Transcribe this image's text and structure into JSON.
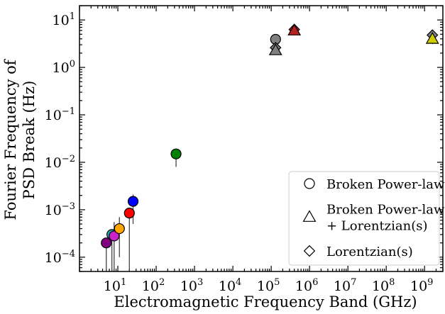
{
  "chart_data": {
    "type": "scatter",
    "xlabel": "Electromagnetic Frequency Band (GHz)",
    "ylabel_lines": [
      "Fourier Frequency of",
      "PSD Break (Hz)"
    ],
    "xscale": "log",
    "yscale": "log",
    "xlim": [
      1,
      3000000000
    ],
    "ylim": [
      5e-05,
      20
    ],
    "x_tick_labels": [
      {
        "value": 10,
        "base": "10",
        "exp": "1"
      },
      {
        "value": 100,
        "base": "10",
        "exp": "2"
      },
      {
        "value": 1000,
        "base": "10",
        "exp": "3"
      },
      {
        "value": 10000,
        "base": "10",
        "exp": "4"
      },
      {
        "value": 100000,
        "base": "10",
        "exp": "5"
      },
      {
        "value": 1000000,
        "base": "10",
        "exp": "6"
      },
      {
        "value": 10000000,
        "base": "10",
        "exp": "7"
      },
      {
        "value": 100000000,
        "base": "10",
        "exp": "8"
      },
      {
        "value": 1000000000,
        "base": "10",
        "exp": "9"
      }
    ],
    "y_tick_labels": [
      {
        "value": 0.0001,
        "base": "10",
        "exp": "−4"
      },
      {
        "value": 0.001,
        "base": "10",
        "exp": "−3"
      },
      {
        "value": 0.01,
        "base": "10",
        "exp": "−2"
      },
      {
        "value": 0.1,
        "base": "10",
        "exp": "−1"
      },
      {
        "value": 1,
        "base": "10",
        "exp": "0"
      },
      {
        "value": 10,
        "base": "10",
        "exp": "1"
      }
    ],
    "legend": {
      "position": "lower-right",
      "entries": [
        {
          "marker": "circle",
          "lines": [
            "Broken Power-law"
          ]
        },
        {
          "marker": "triangle",
          "lines": [
            "Broken Power-law",
            "+ Lorentzian(s)"
          ]
        },
        {
          "marker": "diamond",
          "lines": [
            "Lorentzian(s)"
          ]
        }
      ]
    },
    "points": [
      {
        "x": 5,
        "y": 0.0002,
        "marker": "circle",
        "color": "#800080",
        "err_low": 5e-05,
        "err_high": 0.0002
      },
      {
        "x": 7,
        "y": 0.0003,
        "marker": "circle",
        "color": "#20b2aa",
        "err_low": 5e-05,
        "err_high": 0.0003
      },
      {
        "x": 8,
        "y": 0.00028,
        "marker": "circle",
        "color": "#cc22cc",
        "err_low": 5e-05,
        "err_high": 0.00055
      },
      {
        "x": 11,
        "y": 0.0004,
        "marker": "circle",
        "color": "#ffa500",
        "err_low": 0.0001,
        "err_high": 0.0007
      },
      {
        "x": 20,
        "y": 0.00085,
        "marker": "circle",
        "color": "#ff0000",
        "err_low": 5e-05,
        "err_high": 0.00085
      },
      {
        "x": 25,
        "y": 0.0015,
        "marker": "circle",
        "color": "#0000ff",
        "err_low": 0.0005,
        "err_high": 0.0021
      },
      {
        "x": 330,
        "y": 0.015,
        "marker": "circle",
        "color": "#008000",
        "err_low": 0.008,
        "err_high": 0.015
      },
      {
        "x": 130000,
        "y": 3.9,
        "marker": "circle",
        "color": "#808080"
      },
      {
        "x": 130000,
        "y": 2.6,
        "marker": "diamond",
        "color": "#808080"
      },
      {
        "x": 130000,
        "y": 2.3,
        "marker": "triangle",
        "color": "#808080"
      },
      {
        "x": 400000,
        "y": 6.3,
        "marker": "diamond",
        "color": "#b22222"
      },
      {
        "x": 400000,
        "y": 6.0,
        "marker": "triangle",
        "color": "#b22222"
      },
      {
        "x": 1600000000,
        "y": 4.8,
        "marker": "diamond",
        "color": "#808080"
      },
      {
        "x": 1600000000,
        "y": 4.0,
        "marker": "triangle",
        "color": "#cccc00",
        "err_low": 3.1,
        "err_high": 4.8
      }
    ]
  }
}
